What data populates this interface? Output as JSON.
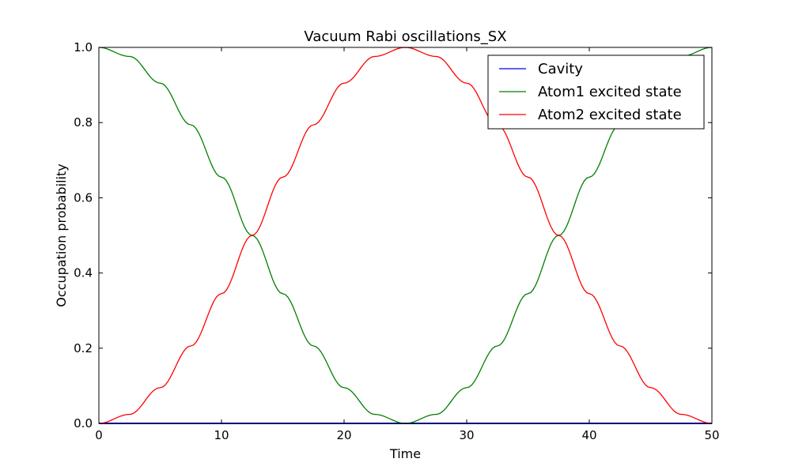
{
  "chart_data": {
    "type": "line",
    "title": "Vacuum Rabi oscillations_SX",
    "xlabel": "Time",
    "ylabel": "Occupation probability",
    "xlim": [
      0,
      50
    ],
    "ylim": [
      0.0,
      1.0
    ],
    "xticks": [
      0,
      10,
      20,
      30,
      40,
      50
    ],
    "xtick_labels": [
      "0",
      "10",
      "20",
      "30",
      "40",
      "50"
    ],
    "yticks": [
      0.0,
      0.2,
      0.4,
      0.6,
      0.8,
      1.0
    ],
    "ytick_labels": [
      "0.0",
      "0.2",
      "0.4",
      "0.6",
      "0.8",
      "1.0"
    ],
    "grid": false,
    "legend_position": "top-right",
    "x": [
      0,
      2.5,
      5,
      7.5,
      10,
      12.5,
      15,
      17.5,
      20,
      22.5,
      25,
      27.5,
      30,
      32.5,
      35,
      37.5,
      40,
      42.5,
      45,
      47.5,
      50
    ],
    "series": [
      {
        "name": "Cavity",
        "color": "#0000ff",
        "values": [
          0,
          0,
          0,
          0,
          0,
          0,
          0,
          0,
          0,
          0,
          0,
          0,
          0,
          0,
          0,
          0,
          0,
          0,
          0,
          0,
          0
        ]
      },
      {
        "name": "Atom1 excited state",
        "color": "#008000",
        "values": [
          1.0,
          0.976,
          0.905,
          0.794,
          0.655,
          0.5,
          0.345,
          0.206,
          0.095,
          0.024,
          0.0,
          0.024,
          0.095,
          0.206,
          0.345,
          0.5,
          0.655,
          0.794,
          0.905,
          0.976,
          1.0
        ]
      },
      {
        "name": "Atom2 excited state",
        "color": "#ff0000",
        "values": [
          0.0,
          0.024,
          0.095,
          0.206,
          0.345,
          0.5,
          0.655,
          0.794,
          0.905,
          0.976,
          1.0,
          0.976,
          0.905,
          0.794,
          0.655,
          0.5,
          0.345,
          0.206,
          0.095,
          0.024,
          0.0
        ]
      }
    ]
  }
}
